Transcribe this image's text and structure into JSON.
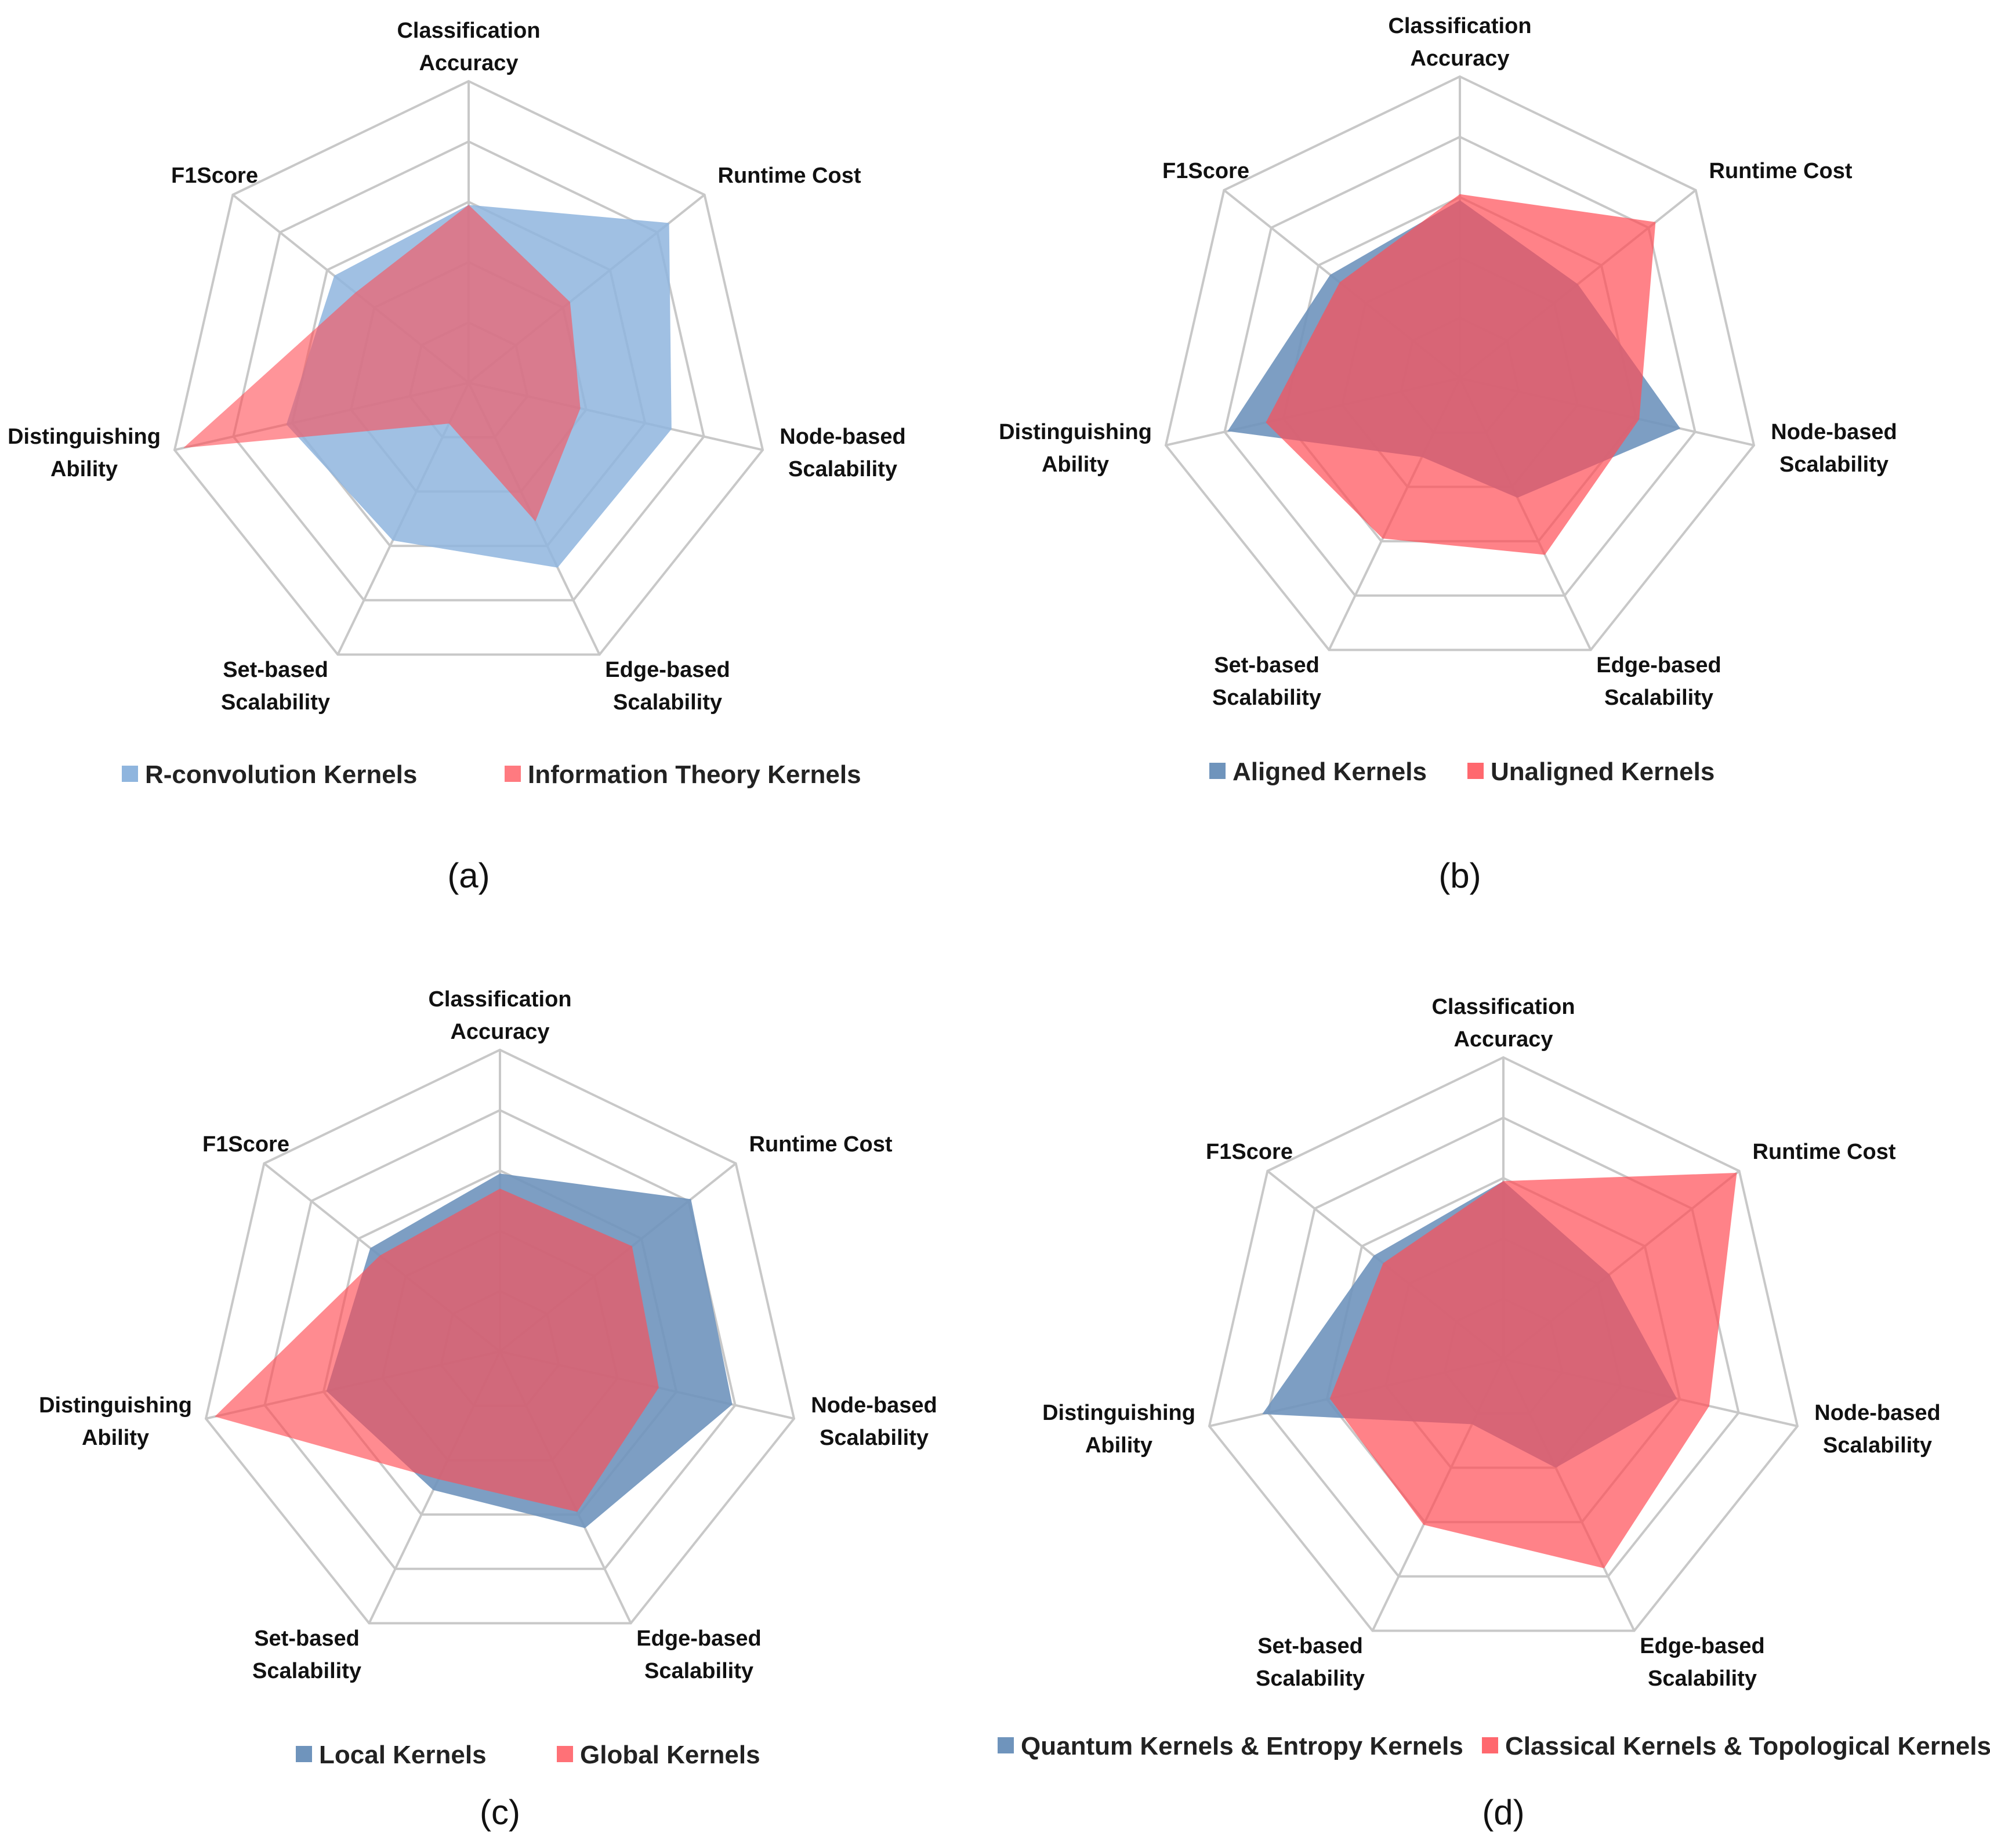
{
  "axes": [
    "Classification Accuracy",
    "Runtime Cost",
    "Node-based Scalability",
    "Edge-based Scalability",
    "Set-based Scalability",
    "Distinguishing Ability",
    "F1Score"
  ],
  "axis_label_lines": [
    [
      "Classification",
      "Accuracy"
    ],
    [
      "Runtime Cost"
    ],
    [
      "Node-based",
      "Scalability"
    ],
    [
      "Edge-based",
      "Scalability"
    ],
    [
      "Set-based",
      "Scalability"
    ],
    [
      "Distinguishing",
      "Ability"
    ],
    [
      "F1Score"
    ]
  ],
  "chart_data": [
    {
      "type": "radar",
      "caption": "(a)",
      "rmax": 5,
      "rings": 5,
      "series": [
        {
          "name": "R-convolution Kernels",
          "color": "#8fb5de",
          "opacity": 0.85,
          "values": [
            2.95,
            4.25,
            3.45,
            3.4,
            2.9,
            3.1,
            2.85
          ]
        },
        {
          "name": "Information Theory Kernels",
          "color": "#ff4d55",
          "opacity": 0.6,
          "values": [
            2.95,
            2.15,
            1.9,
            2.55,
            0.75,
            4.85,
            2.4
          ]
        }
      ]
    },
    {
      "type": "radar",
      "caption": "(b)",
      "rmax": 5,
      "rings": 5,
      "series": [
        {
          "name": "Aligned Kernels",
          "color": "#6f94bc",
          "opacity": 0.9,
          "values": [
            2.95,
            2.5,
            3.75,
            2.2,
            1.45,
            3.95,
            2.75
          ]
        },
        {
          "name": "Unaligned Kernels",
          "color": "#ff4d55",
          "opacity": 0.7,
          "values": [
            3.05,
            4.15,
            3.05,
            3.25,
            2.95,
            3.3,
            2.55
          ]
        }
      ]
    },
    {
      "type": "radar",
      "caption": "(c)",
      "rmax": 5,
      "rings": 5,
      "series": [
        {
          "name": "Local Kernels",
          "color": "#6f94bc",
          "opacity": 0.9,
          "values": [
            2.95,
            4.05,
            3.95,
            3.25,
            2.55,
            2.95,
            2.75
          ]
        },
        {
          "name": "Global Kernels",
          "color": "#ff4d55",
          "opacity": 0.65,
          "values": [
            2.7,
            2.8,
            2.7,
            2.95,
            2.35,
            4.85,
            2.55
          ]
        }
      ]
    },
    {
      "type": "radar",
      "caption": "(d)",
      "rmax": 5,
      "rings": 5,
      "series": [
        {
          "name": "Quantum Kernels & Entropy Kernels",
          "color": "#6f94bc",
          "opacity": 0.9,
          "values": [
            2.95,
            2.25,
            2.95,
            2.0,
            1.2,
            4.1,
            2.75
          ]
        },
        {
          "name": "Classical Kernels & Topological Kernels",
          "color": "#ff4d55",
          "opacity": 0.7,
          "values": [
            2.95,
            4.95,
            3.5,
            3.85,
            3.05,
            2.95,
            2.55
          ]
        }
      ]
    }
  ]
}
